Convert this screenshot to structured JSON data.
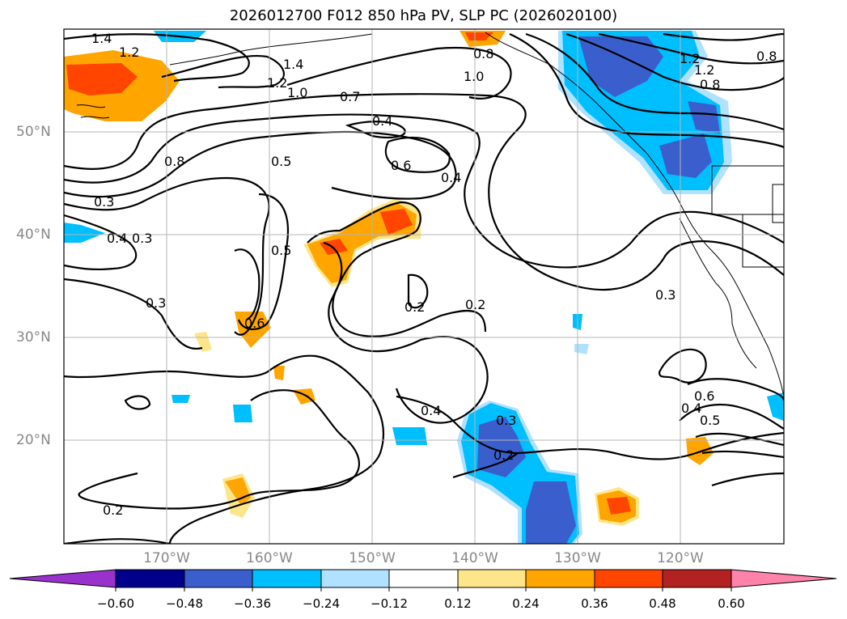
{
  "title": "2026012700 F012 850 hPa PV, SLP PC (2026020100)",
  "latitude_labels": [
    "50°N",
    "40°N",
    "30°N",
    "20°N"
  ],
  "longitude_labels": [
    "170°W",
    "160°W",
    "150°W",
    "140°W",
    "130°W",
    "120°W"
  ],
  "contour_labels": [
    "1.4",
    "1.2",
    "1.2",
    "1.4",
    "1.2",
    "1.0",
    "0.7",
    "0.4",
    "0.5",
    "0.8",
    "0.6",
    "0.4",
    "0.8",
    "1.0",
    "1.2",
    "0.8",
    "0.8",
    "0.3",
    "0.3",
    "0.4",
    "0.5",
    "0.6",
    "0.3",
    "0.2",
    "0.2",
    "0.4",
    "0.3",
    "0.2",
    "0.2",
    "0.3",
    "0.4",
    "0.6",
    "0.5"
  ],
  "colorbar": {
    "tick_labels": [
      "−0.60",
      "−0.48",
      "−0.36",
      "−0.24",
      "−0.12",
      "0.12",
      "0.24",
      "0.36",
      "0.48",
      "0.60"
    ],
    "colors": [
      "#9932cc",
      "#00008b",
      "#3a5fcd",
      "#00bfff",
      "#b0e2ff",
      "#ffffff",
      "#fde68a",
      "#ffa500",
      "#ff4500",
      "#b22222",
      "#ff82ab"
    ]
  },
  "fill_colors": {
    "orange": "#ffa500",
    "red": "#ff4500",
    "yellow": "#fde68a",
    "lightblue": "#b0e2ff",
    "blue": "#00bfff",
    "darkblue": "#3a5fcd"
  }
}
